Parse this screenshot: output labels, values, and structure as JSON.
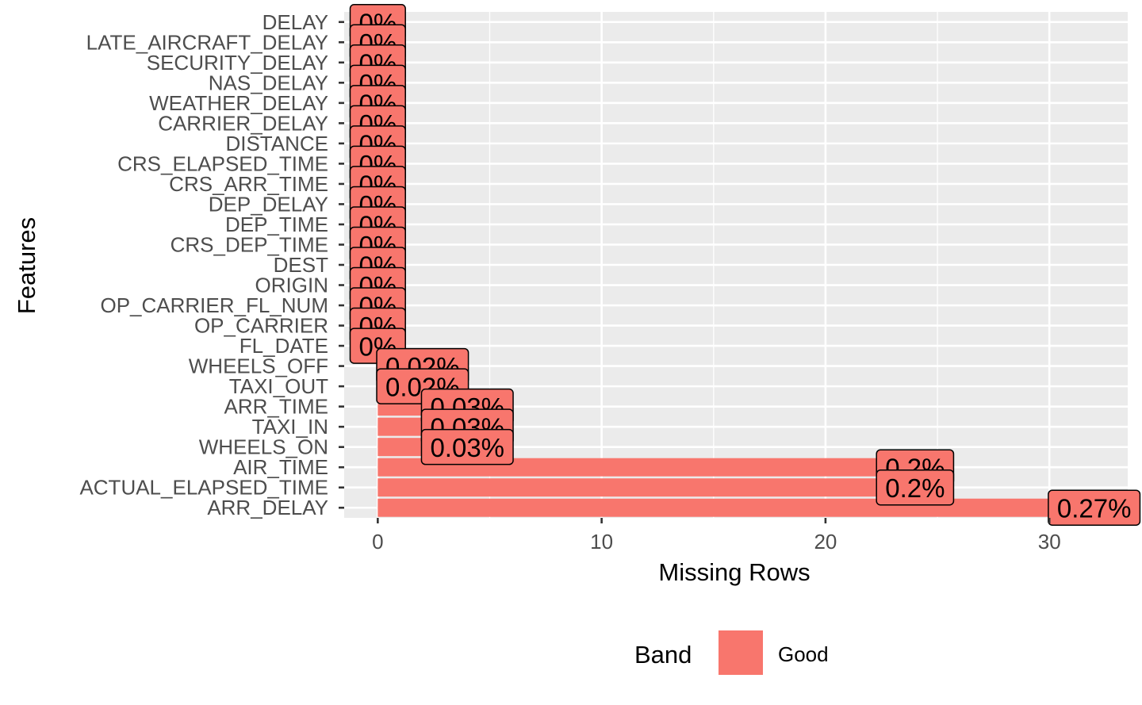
{
  "chart_data": {
    "type": "bar",
    "orientation": "horizontal",
    "xlabel": "Missing Rows",
    "ylabel": "Features",
    "xlim": [
      -1.5,
      33.5
    ],
    "x_ticks": [
      0,
      10,
      20,
      30
    ],
    "grid": true,
    "legend": {
      "title": "Band",
      "position": "bottom",
      "entries": [
        {
          "label": "Good",
          "color": "#F8766D"
        }
      ]
    },
    "bar_color": "#F8766D",
    "categories": [
      "DELAY",
      "LATE_AIRCRAFT_DELAY",
      "SECURITY_DELAY",
      "NAS_DELAY",
      "WEATHER_DELAY",
      "CARRIER_DELAY",
      "DISTANCE",
      "CRS_ELAPSED_TIME",
      "CRS_ARR_TIME",
      "DEP_DELAY",
      "DEP_TIME",
      "CRS_DEP_TIME",
      "DEST",
      "ORIGIN",
      "OP_CARRIER_FL_NUM",
      "OP_CARRIER",
      "FL_DATE",
      "WHEELS_OFF",
      "TAXI_OUT",
      "ARR_TIME",
      "TAXI_IN",
      "WHEELS_ON",
      "AIR_TIME",
      "ACTUAL_ELAPSED_TIME",
      "ARR_DELAY"
    ],
    "values": [
      0,
      0,
      0,
      0,
      0,
      0,
      0,
      0,
      0,
      0,
      0,
      0,
      0,
      0,
      0,
      0,
      0,
      2,
      2,
      4,
      4,
      4,
      24,
      24,
      32
    ],
    "labels": [
      "0%",
      "0%",
      "0%",
      "0%",
      "0%",
      "0%",
      "0%",
      "0%",
      "0%",
      "0%",
      "0%",
      "0%",
      "0%",
      "0%",
      "0%",
      "0%",
      "0%",
      "0.02%",
      "0.02%",
      "0.03%",
      "0.03%",
      "0.03%",
      "0.2%",
      "0.2%",
      "0.27%"
    ]
  }
}
